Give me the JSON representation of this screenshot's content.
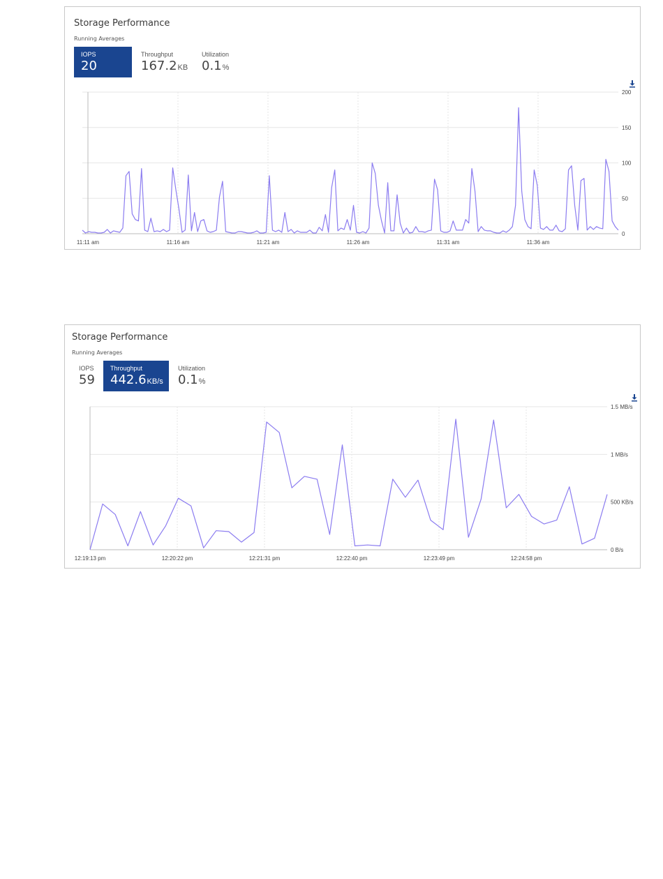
{
  "colors": {
    "accent": "#1a4590",
    "line": "#8b7cf0",
    "grid": "#e6e6e6"
  },
  "panels": [
    {
      "title": "Storage Performance",
      "subtitle": "Running Averages",
      "download_icon": "download-icon",
      "metrics": [
        {
          "label": "IOPS",
          "value": "20",
          "unit": "",
          "active": true
        },
        {
          "label": "Throughput",
          "value": "167.2",
          "unit": "KB",
          "active": false
        },
        {
          "label": "Utilization",
          "value": "0.1",
          "unit": "%",
          "active": false
        }
      ]
    },
    {
      "title": "Storage Performance",
      "subtitle": "Running Averages",
      "download_icon": "download-icon",
      "metrics": [
        {
          "label": "IOPS",
          "value": "59",
          "unit": "",
          "active": false
        },
        {
          "label": "Throughput",
          "value": "442.6",
          "unit": "KB/s",
          "active": true
        },
        {
          "label": "Utilization",
          "value": "0.1",
          "unit": "%",
          "active": false
        }
      ]
    }
  ],
  "chart_data": [
    {
      "type": "line",
      "title": "",
      "ylim": [
        0,
        200
      ],
      "y_ticks": [
        0,
        50,
        100,
        150,
        200
      ],
      "y_tick_labels": [
        "0",
        "50",
        "100",
        "150",
        "200"
      ],
      "x_tick_labels": [
        "11:11 am",
        "11:16 am",
        "11:21 am",
        "11:26 am",
        "11:31 am",
        "11:36 am"
      ],
      "grid": true,
      "series": [
        {
          "values": [
            5,
            1,
            3,
            2,
            2,
            1,
            1,
            2,
            6,
            1,
            4,
            3,
            2,
            8,
            82,
            88,
            28,
            20,
            18,
            92,
            5,
            3,
            22,
            3,
            4,
            3,
            6,
            3,
            5,
            93,
            62,
            35,
            2,
            5,
            83,
            4,
            30,
            3,
            18,
            20,
            4,
            2,
            3,
            5,
            52,
            74,
            3,
            2,
            1,
            1,
            3,
            3,
            2,
            1,
            1,
            2,
            4,
            1,
            1,
            2,
            82,
            5,
            3,
            5,
            2,
            30,
            3,
            6,
            1,
            4,
            2,
            2,
            2,
            5,
            1,
            1,
            9,
            4,
            27,
            2,
            65,
            90,
            4,
            8,
            6,
            20,
            5,
            40,
            2,
            1,
            3,
            1,
            8,
            100,
            85,
            40,
            18,
            1,
            72,
            4,
            4,
            55,
            15,
            1,
            8,
            1,
            2,
            10,
            3,
            3,
            2,
            4,
            5,
            77,
            62,
            4,
            2,
            2,
            4,
            18,
            5,
            5,
            5,
            20,
            15,
            92,
            60,
            3,
            10,
            5,
            4,
            4,
            2,
            1,
            1,
            4,
            2,
            5,
            10,
            40,
            178,
            60,
            20,
            10,
            7,
            90,
            68,
            8,
            6,
            10,
            5,
            5,
            12,
            4,
            3,
            7,
            90,
            96,
            40,
            5,
            75,
            78,
            5,
            10,
            6,
            10,
            8,
            7,
            105,
            88,
            18,
            10,
            5
          ]
        }
      ]
    },
    {
      "type": "line",
      "title": "",
      "ylim": [
        0,
        1.5
      ],
      "y_ticks": [
        0,
        0.5,
        1,
        1.5
      ],
      "y_tick_labels": [
        "0 B/s",
        "500 KB/s",
        "1 MB/s",
        "1.5 MB/s"
      ],
      "x_tick_labels": [
        "12:19:13 pm",
        "12:20:22 pm",
        "12:21:31 pm",
        "12:22:40 pm",
        "12:23:49 pm",
        "12:24:58 pm"
      ],
      "grid": true,
      "series": [
        {
          "values": [
            0.0,
            0.48,
            0.37,
            0.04,
            0.4,
            0.05,
            0.25,
            0.54,
            0.46,
            0.02,
            0.2,
            0.19,
            0.08,
            0.18,
            1.34,
            1.23,
            0.65,
            0.77,
            0.74,
            0.16,
            1.1,
            0.04,
            0.05,
            0.04,
            0.74,
            0.55,
            0.73,
            0.31,
            0.21,
            1.37,
            0.13,
            0.53,
            1.36,
            0.44,
            0.58,
            0.35,
            0.27,
            0.31,
            0.66,
            0.06,
            0.12,
            0.58
          ]
        }
      ]
    }
  ]
}
